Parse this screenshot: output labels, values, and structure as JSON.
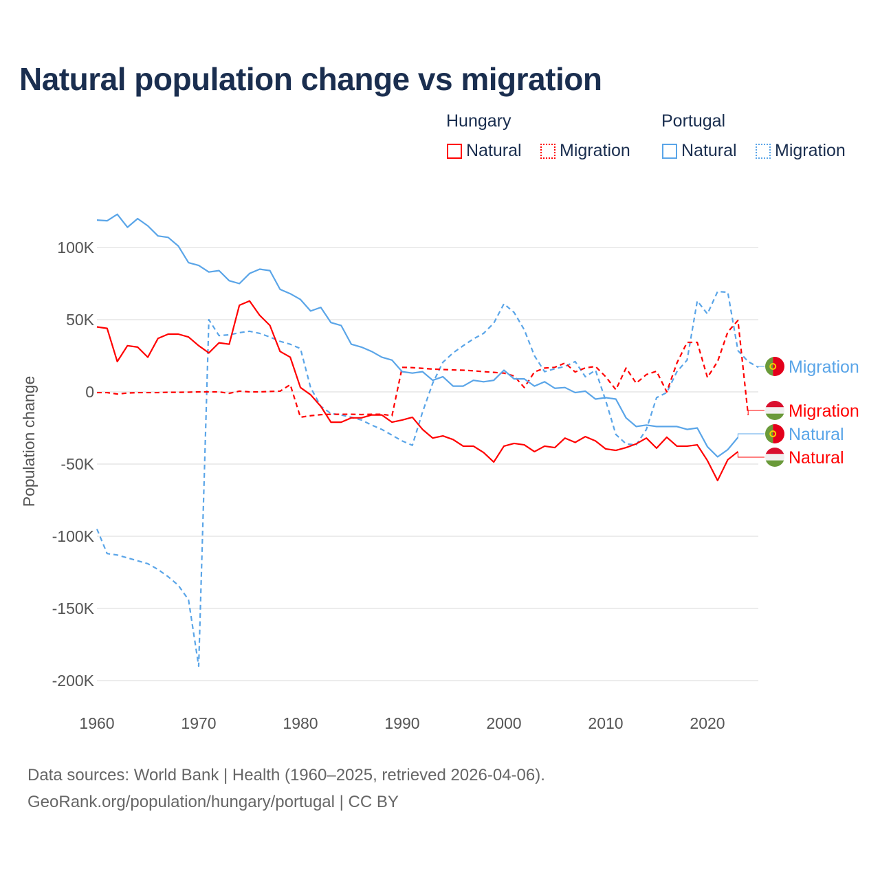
{
  "title": "Natural population change vs migration",
  "legend": {
    "groups": [
      {
        "label": "Hungary",
        "items": [
          {
            "label": "Natural",
            "style": "solid",
            "color": "#ff0000"
          },
          {
            "label": "Migration",
            "style": "dotted",
            "color": "#ff0000"
          }
        ]
      },
      {
        "label": "Portugal",
        "items": [
          {
            "label": "Natural",
            "style": "solid",
            "color": "#5aa5e8"
          },
          {
            "label": "Migration",
            "style": "dotted",
            "color": "#5aa5e8"
          }
        ]
      }
    ]
  },
  "footer": {
    "line1": "Data sources: World Bank | Health (1960–2025, retrieved 2026-04-06).",
    "line2": "GeoRank.org/population/hungary/portugal | CC BY"
  },
  "chart_data": {
    "type": "line",
    "title": "Natural population change vs migration",
    "ylabel": "Population change",
    "xlabel": "",
    "xlim": [
      1960,
      2025
    ],
    "ylim": [
      -200000,
      120000
    ],
    "x_ticks": [
      1960,
      1970,
      1980,
      1990,
      2000,
      2010,
      2020
    ],
    "x_tick_labels": [
      "1960",
      "1970",
      "1980",
      "1990",
      "2000",
      "2010",
      "2020"
    ],
    "y_ticks": [
      100000,
      50000,
      0,
      -50000,
      -100000,
      -150000,
      -200000
    ],
    "y_tick_labels": [
      "100K",
      "50K",
      "0",
      "-50K",
      "-100K",
      "-150K",
      "-200K"
    ],
    "grid": true,
    "series": [
      {
        "name": "Portugal Migration",
        "end_label": "Migration",
        "country": "Portugal",
        "color": "#5aa5e8",
        "dash": true,
        "start": 1960,
        "values": [
          -95,
          -112,
          -113,
          -115,
          -117,
          -119,
          -123,
          -128,
          -134,
          -144,
          -190,
          50,
          39,
          39.5,
          41,
          42,
          40.5,
          38,
          35,
          33,
          30,
          3,
          -10,
          -15,
          -16,
          -17.6,
          -19.5,
          -23,
          -26,
          -30,
          -34,
          -37,
          -14,
          6,
          20.5,
          27,
          32,
          36.7,
          40.5,
          47.6,
          61,
          55,
          43,
          25,
          14,
          16,
          17.6,
          21,
          10.5,
          15,
          -6,
          -29.5,
          -36,
          -36.7,
          -26,
          -4,
          -0.5,
          14,
          22,
          63,
          54,
          69.5,
          69,
          28.6,
          21,
          17
        ]
      },
      {
        "name": "Hungary Migration",
        "end_label": "Migration",
        "country": "Hungary",
        "color": "#ff0000",
        "dash": true,
        "start": 1960,
        "values": [
          -0.5,
          -0.5,
          -1.5,
          -0.8,
          -0.5,
          -0.5,
          -0.5,
          -0.3,
          -0.3,
          -0.2,
          0,
          0,
          0,
          -1,
          0.5,
          0,
          0,
          0.3,
          0.5,
          5,
          -17.6,
          -16.5,
          -15.8,
          -15.5,
          -15.5,
          -15.5,
          -15.7,
          -15.5,
          -15.5,
          -16.5,
          17,
          16.8,
          16.3,
          15.8,
          15.5,
          15.2,
          15,
          14.6,
          14,
          13.5,
          13,
          11,
          3,
          13.8,
          16.5,
          17,
          20,
          13.8,
          16.6,
          17.6,
          10.5,
          1.5,
          16.5,
          6,
          12,
          14.3,
          0,
          20,
          34.3,
          34.3,
          10,
          21,
          41.5,
          49.5,
          -16
        ]
      },
      {
        "name": "Portugal Natural",
        "end_label": "Natural",
        "country": "Portugal",
        "color": "#5aa5e8",
        "dash": false,
        "start": 1960,
        "values": [
          119,
          118.5,
          123,
          114,
          120,
          115,
          108,
          107,
          101,
          89.5,
          87.6,
          83,
          84,
          77,
          75,
          82,
          85,
          84,
          71,
          68,
          64,
          56,
          58.5,
          48,
          46,
          33,
          31,
          28,
          24,
          22,
          14,
          13,
          14,
          8,
          10.5,
          4,
          4,
          8,
          7,
          8,
          15,
          9,
          9,
          4,
          7,
          2.5,
          3,
          -0.5,
          0.5,
          -5,
          -4,
          -5,
          -18,
          -24,
          -23,
          -24,
          -24,
          -24,
          -26,
          -25,
          -38,
          -45,
          -40,
          -31.5
        ]
      },
      {
        "name": "Hungary Natural",
        "end_label": "Natural",
        "country": "Hungary",
        "color": "#ff0000",
        "dash": false,
        "start": 1960,
        "values": [
          45,
          44,
          21,
          32,
          31,
          24,
          37,
          40,
          40,
          38,
          32,
          27,
          34,
          33,
          60,
          63,
          53,
          46,
          28,
          24,
          3,
          -2,
          -10,
          -21,
          -21,
          -18,
          -18,
          -16,
          -16,
          -21,
          -19.5,
          -17.6,
          -26,
          -32,
          -30.5,
          -33,
          -37.6,
          -37.6,
          -42,
          -48.6,
          -37.6,
          -35.7,
          -36.7,
          -41.4,
          -37.6,
          -38.6,
          -32,
          -35,
          -31,
          -34,
          -39.5,
          -40.5,
          -38.6,
          -36,
          -32,
          -39,
          -31.4,
          -37.6,
          -37.6,
          -36.7,
          -47.6,
          -61.4,
          -47,
          -41.4
        ]
      }
    ],
    "value_units": "thousands"
  }
}
